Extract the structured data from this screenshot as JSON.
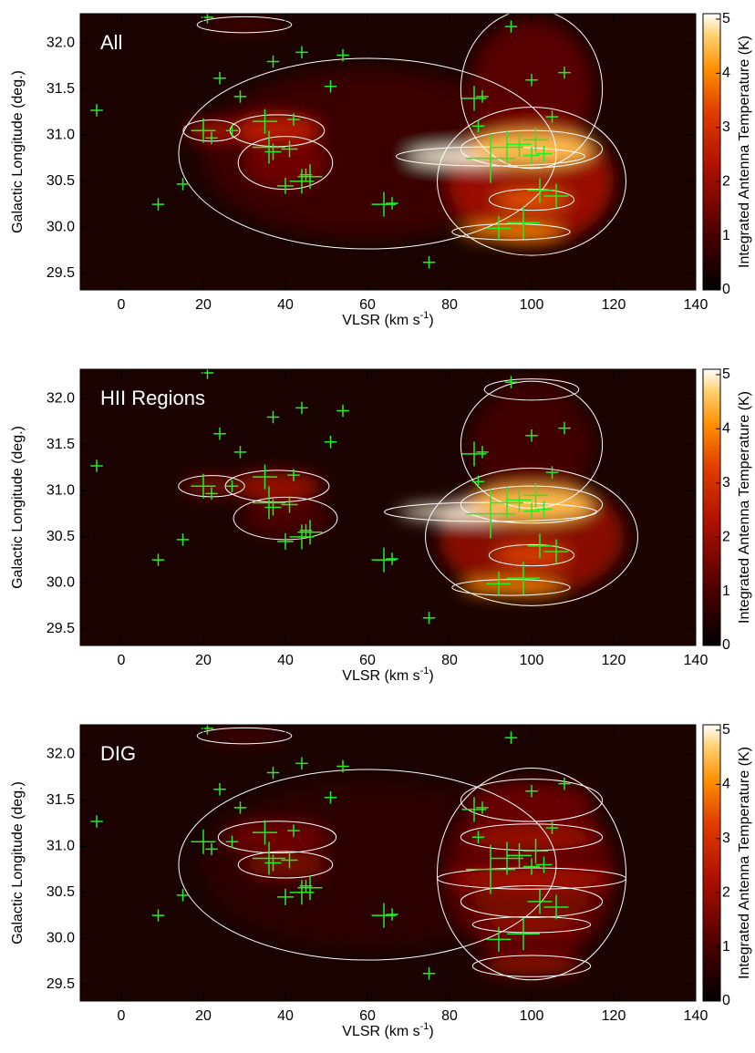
{
  "chart_data": [
    {
      "type": "heatmap",
      "title": "All",
      "xlabel": "VLSR (km s",
      "xlabel_sup": "-1",
      "xlabel_end": ")",
      "ylabel": "Galactic Longitude (deg.)",
      "colorbar_label": "Integrated Antenna Temperature (K)",
      "xlim": [
        -10,
        140
      ],
      "ylim": [
        29.32,
        32.32
      ],
      "clim": [
        0,
        5.1
      ],
      "xticks": [
        0,
        20,
        40,
        60,
        80,
        100,
        120,
        140
      ],
      "yticks": [
        {
          "value": 29.5,
          "label": "29.5"
        },
        {
          "value": 30,
          "label": "30.0"
        },
        {
          "value": 30.5,
          "label": "30.5"
        },
        {
          "value": 31,
          "label": "31.0"
        },
        {
          "value": 31.5,
          "label": "31.5"
        },
        {
          "value": 32,
          "label": "32.0"
        }
      ],
      "cticks": [
        0,
        1,
        2,
        3,
        4,
        5
      ],
      "blobs": {
        "x": [
          60,
          100,
          100,
          90,
          100,
          100,
          95,
          38,
          22,
          40,
          30
        ],
        "y": [
          30.8,
          31.5,
          30.5,
          30.77,
          30.85,
          30.3,
          29.95,
          31.05,
          31.05,
          30.7,
          32.2
        ],
        "width": [
          80,
          30,
          40,
          40,
          30,
          18,
          25,
          20,
          12,
          20,
          20
        ],
        "height": [
          1.8,
          1.5,
          1.4,
          0.18,
          0.35,
          0.2,
          0.15,
          0.3,
          0.2,
          0.5,
          0.15
        ],
        "values": [
          0.8,
          1.2,
          2.0,
          5.0,
          4.5,
          3.5,
          4.0,
          2.5,
          2.2,
          1.5,
          1.0
        ]
      },
      "markers": {
        "x": [
          -6,
          9,
          15,
          21,
          24,
          20,
          22,
          27,
          29,
          35,
          36,
          37,
          40,
          41,
          42,
          44,
          45,
          46,
          44,
          37,
          51,
          54,
          64,
          66,
          75,
          86,
          88,
          87,
          90,
          92,
          94,
          95,
          97,
          98,
          100,
          101,
          102,
          103,
          105,
          106,
          108,
          100
        ],
        "y": [
          31.27,
          30.25,
          30.47,
          32.28,
          31.62,
          31.05,
          30.97,
          31.05,
          31.42,
          31.15,
          30.87,
          30.82,
          30.45,
          30.85,
          31.17,
          30.5,
          30.57,
          30.55,
          31.9,
          31.8,
          31.53,
          31.87,
          30.25,
          30.26,
          29.62,
          31.4,
          31.42,
          31.1,
          30.75,
          29.99,
          30.87,
          32.18,
          30.9,
          30.05,
          30.78,
          30.95,
          30.4,
          30.8,
          31.2,
          30.34,
          31.68,
          31.6
        ],
        "size": [
          1.5,
          1.5,
          1.5,
          1.5,
          1.5,
          3,
          1.5,
          1.5,
          1.5,
          3,
          4,
          2,
          2,
          2,
          1.5,
          3,
          1.5,
          3,
          1.5,
          1.5,
          1.5,
          1.5,
          3,
          1.5,
          1.5,
          3,
          1.5,
          1.5,
          6,
          3,
          4,
          1.5,
          3,
          4,
          2,
          3,
          3,
          2,
          1.5,
          3,
          1.5,
          1.5
        ]
      }
    },
    {
      "type": "heatmap",
      "title": "HII Regions",
      "xlabel": "VLSR (km s",
      "xlabel_sup": "-1",
      "xlabel_end": ")",
      "ylabel": "Galactic Longitude (deg.)",
      "colorbar_label": "Integrated Antenna Temperature (K)",
      "xlim": [
        -10,
        140
      ],
      "ylim": [
        29.32,
        32.32
      ],
      "clim": [
        0,
        5.1
      ],
      "xticks": [
        0,
        20,
        40,
        60,
        80,
        100,
        120,
        140
      ],
      "yticks": [
        {
          "value": 29.5,
          "label": "29.5"
        },
        {
          "value": 30,
          "label": "30.0"
        },
        {
          "value": 30.5,
          "label": "30.5"
        },
        {
          "value": 31,
          "label": "31.0"
        },
        {
          "value": 31.5,
          "label": "31.5"
        },
        {
          "value": 32,
          "label": "32.0"
        }
      ],
      "cticks": [
        0,
        1,
        2,
        3,
        4,
        5
      ],
      "blobs": {
        "x": [
          100,
          100,
          90,
          100,
          100,
          95,
          38,
          22,
          40,
          100
        ],
        "y": [
          31.5,
          30.5,
          30.77,
          30.85,
          30.3,
          29.95,
          31.05,
          31.05,
          30.7,
          32.1
        ],
        "width": [
          30,
          45,
          45,
          30,
          18,
          25,
          22,
          14,
          22,
          20
        ],
        "height": [
          1.2,
          1.3,
          0.18,
          0.35,
          0.2,
          0.15,
          0.3,
          0.2,
          0.4,
          0.2
        ],
        "values": [
          0.9,
          1.8,
          5.0,
          4.5,
          3.3,
          4.0,
          2.0,
          1.6,
          1.0,
          0.8
        ]
      },
      "markers": {
        "x": [
          -6,
          9,
          15,
          21,
          24,
          20,
          22,
          27,
          29,
          35,
          36,
          37,
          40,
          41,
          42,
          44,
          45,
          46,
          44,
          37,
          51,
          54,
          64,
          66,
          75,
          86,
          88,
          87,
          90,
          92,
          94,
          95,
          97,
          98,
          100,
          101,
          102,
          103,
          105,
          106,
          108,
          100
        ],
        "y": [
          31.27,
          30.25,
          30.47,
          32.28,
          31.62,
          31.05,
          30.97,
          31.05,
          31.42,
          31.15,
          30.87,
          30.82,
          30.45,
          30.85,
          31.17,
          30.5,
          30.57,
          30.55,
          31.9,
          31.8,
          31.53,
          31.87,
          30.25,
          30.26,
          29.62,
          31.4,
          31.42,
          31.1,
          30.75,
          29.99,
          30.87,
          32.18,
          30.9,
          30.05,
          30.78,
          30.95,
          30.4,
          30.8,
          31.2,
          30.34,
          31.68,
          31.6
        ],
        "size": [
          1.5,
          1.5,
          1.5,
          1.5,
          1.5,
          3,
          1.5,
          1.5,
          1.5,
          3,
          4,
          2,
          2,
          2,
          1.5,
          3,
          1.5,
          3,
          1.5,
          1.5,
          1.5,
          1.5,
          3,
          1.5,
          1.5,
          3,
          1.5,
          1.5,
          6,
          3,
          4,
          1.5,
          3,
          4,
          2,
          3,
          3,
          2,
          1.5,
          3,
          1.5,
          1.5
        ]
      }
    },
    {
      "type": "heatmap",
      "title": "DIG",
      "xlabel": "VLSR (km s",
      "xlabel_sup": "-1",
      "xlabel_end": ")",
      "ylabel": "Galactic Longitude (deg.)",
      "colorbar_label": "Integrated Antenna Temperature (K)",
      "xlim": [
        -10,
        140
      ],
      "ylim": [
        29.32,
        32.32
      ],
      "clim": [
        0,
        5.1
      ],
      "xticks": [
        0,
        20,
        40,
        60,
        80,
        100,
        120,
        140
      ],
      "yticks": [
        {
          "value": 29.5,
          "label": "29.5"
        },
        {
          "value": 30,
          "label": "30.0"
        },
        {
          "value": 30.5,
          "label": "30.5"
        },
        {
          "value": 31,
          "label": "31.0"
        },
        {
          "value": 31.5,
          "label": "31.5"
        },
        {
          "value": 32,
          "label": "32.0"
        }
      ],
      "cticks": [
        0,
        1,
        2,
        3,
        4,
        5
      ],
      "blobs": {
        "x": [
          60,
          100,
          100,
          100,
          100,
          100,
          100,
          100,
          38,
          40,
          30
        ],
        "y": [
          30.8,
          30.7,
          31.5,
          31.1,
          30.65,
          30.15,
          29.7,
          30.4,
          31.1,
          30.8,
          32.2
        ],
        "width": [
          80,
          40,
          30,
          30,
          40,
          25,
          25,
          30,
          25,
          20,
          20
        ],
        "height": [
          1.8,
          2.0,
          0.4,
          0.25,
          0.2,
          0.15,
          0.2,
          0.3,
          0.3,
          0.25,
          0.15
        ],
        "values": [
          0.6,
          1.2,
          1.4,
          2.0,
          2.2,
          2.0,
          1.8,
          1.6,
          1.5,
          1.6,
          1.0
        ]
      },
      "markers": {
        "x": [
          -6,
          9,
          15,
          21,
          24,
          20,
          22,
          27,
          29,
          35,
          36,
          37,
          40,
          41,
          42,
          44,
          45,
          46,
          44,
          37,
          51,
          54,
          64,
          66,
          75,
          86,
          88,
          87,
          90,
          92,
          94,
          95,
          97,
          98,
          100,
          101,
          102,
          103,
          105,
          106,
          108,
          100
        ],
        "y": [
          31.27,
          30.25,
          30.47,
          32.28,
          31.62,
          31.05,
          30.97,
          31.05,
          31.42,
          31.15,
          30.87,
          30.82,
          30.45,
          30.85,
          31.17,
          30.5,
          30.57,
          30.55,
          31.9,
          31.8,
          31.53,
          31.87,
          30.25,
          30.26,
          29.62,
          31.4,
          31.42,
          31.1,
          30.75,
          29.99,
          30.87,
          32.18,
          30.9,
          30.05,
          30.78,
          30.95,
          30.4,
          30.8,
          31.2,
          30.34,
          31.68,
          31.6
        ],
        "size": [
          1.5,
          1.5,
          1.5,
          1.5,
          1.5,
          3,
          1.5,
          1.5,
          1.5,
          3,
          4,
          2,
          2,
          2,
          1.5,
          3,
          1.5,
          3,
          1.5,
          1.5,
          1.5,
          1.5,
          3,
          1.5,
          1.5,
          3,
          1.5,
          1.5,
          6,
          3,
          4,
          1.5,
          3,
          4,
          2,
          3,
          3,
          2,
          1.5,
          3,
          1.5,
          1.5
        ]
      }
    }
  ]
}
